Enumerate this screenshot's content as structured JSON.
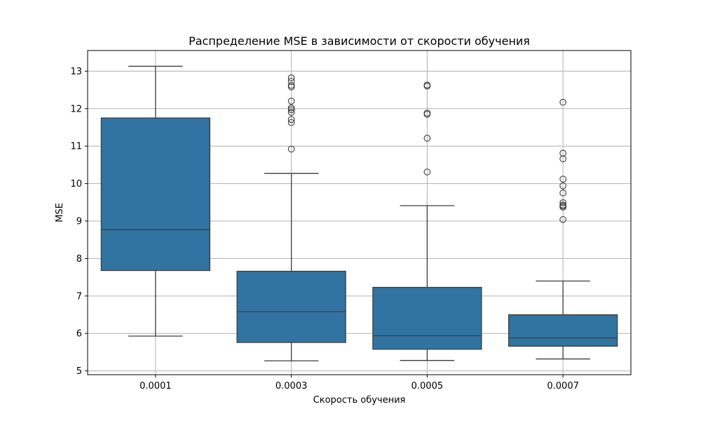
{
  "chart_data": {
    "type": "box",
    "title": "Распределение MSE в зависимости от скорости обучения",
    "xlabel": "Скорость обучения",
    "ylabel": "MSE",
    "ylim": [
      4.9,
      13.55
    ],
    "yticks": [
      5,
      6,
      7,
      8,
      9,
      10,
      11,
      12,
      13
    ],
    "grid": true,
    "box_color": "#3274a1",
    "line_color": "#3d3d3d",
    "categories": [
      "0.0001",
      "0.0003",
      "0.0005",
      "0.0007"
    ],
    "boxes": [
      {
        "category": "0.0001",
        "whisker_low": 5.93,
        "q1": 7.68,
        "median": 8.77,
        "q3": 11.75,
        "whisker_high": 13.13,
        "outliers": []
      },
      {
        "category": "0.0003",
        "whisker_low": 5.27,
        "q1": 5.76,
        "median": 6.58,
        "q3": 7.66,
        "whisker_high": 10.27,
        "outliers": [
          10.92,
          11.63,
          11.71,
          11.9,
          11.97,
          12.02,
          12.2,
          12.58,
          12.62,
          12.73,
          12.82
        ]
      },
      {
        "category": "0.0005",
        "whisker_low": 5.28,
        "q1": 5.58,
        "median": 5.94,
        "q3": 7.23,
        "whisker_high": 9.41,
        "outliers": [
          10.31,
          11.21,
          11.85,
          11.88,
          12.6,
          12.63
        ]
      },
      {
        "category": "0.0007",
        "whisker_low": 5.32,
        "q1": 5.66,
        "median": 5.88,
        "q3": 6.5,
        "whisker_high": 7.4,
        "outliers": [
          9.04,
          9.37,
          9.4,
          9.43,
          9.49,
          9.75,
          9.94,
          10.12,
          10.66,
          10.81,
          12.17
        ]
      }
    ]
  }
}
